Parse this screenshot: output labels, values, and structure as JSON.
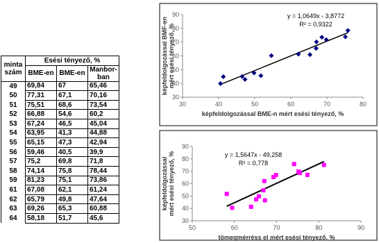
{
  "table": {
    "header": {
      "sample": "minta szám",
      "group": "Esési tényező, %",
      "columns": [
        "BME-en",
        "BME-en",
        "Manbor-ban"
      ]
    },
    "rows": [
      [
        "49",
        "69,84",
        "67",
        "65,46"
      ],
      [
        "50",
        "77,31",
        "67,1",
        "70,16"
      ],
      [
        "51",
        "75,51",
        "68,6",
        "73,54"
      ],
      [
        "52",
        "66,88",
        "54,6",
        "60,2"
      ],
      [
        "53",
        "67,24",
        "46,5",
        "45,04"
      ],
      [
        "54",
        "63,95",
        "41,3",
        "44,88"
      ],
      [
        "55",
        "65,15",
        "47,3",
        "42,94"
      ],
      [
        "56",
        "59,46",
        "40,5",
        "39,9"
      ],
      [
        "57",
        "75,2",
        "69,8",
        "71,8"
      ],
      [
        "58",
        "74,14",
        "75,8",
        "78,44"
      ],
      [
        "59",
        "81,23",
        "75,1",
        "73,86"
      ],
      [
        "61",
        "67,08",
        "62,1",
        "61,24"
      ],
      [
        "62",
        "65,79",
        "49,8",
        "47,64"
      ],
      [
        "63",
        "69,26",
        "65,3",
        "60,88"
      ],
      [
        "64",
        "58,18",
        "51,7",
        "45,6"
      ]
    ]
  },
  "chart_data": [
    {
      "type": "scatter",
      "xlabel": "képfeldolgozással BME-n mért esési tényező, %",
      "ylabel": [
        "képfeldolgozással BMF-en",
        "mért esési tényező, %"
      ],
      "annotations": [
        "y = 1,0649x - 3,8772",
        "R² = 0,9322"
      ],
      "x": [
        67,
        67.1,
        68.6,
        54.6,
        46.5,
        41.3,
        47.3,
        40.5,
        69.8,
        75.8,
        75.1,
        62.1,
        49.8,
        65.3,
        51.7
      ],
      "series": [
        {
          "color": "#000080",
          "marker": "diamond",
          "values": [
            65.46,
            70.16,
            73.54,
            60.2,
            45.04,
            44.88,
            42.94,
            39.9,
            71.8,
            78.44,
            73.86,
            61.24,
            47.64,
            60.88,
            45.6
          ]
        }
      ],
      "xlim": [
        30,
        80
      ],
      "xticks": [
        30,
        40,
        50,
        60,
        70,
        80
      ],
      "ylim": [
        30,
        90
      ],
      "yticks": [
        30,
        40,
        50,
        60,
        70,
        80,
        90
      ],
      "trendline": "linear"
    },
    {
      "type": "scatter",
      "xlabel": "tömegmérréss el mért esési tényező, %",
      "ylabel": [
        "képfeldolgozással",
        "mért esési tényező, %"
      ],
      "annotations": [
        "y = 1,5647x - 49,258",
        "R² = 0,778"
      ],
      "x": [
        69.84,
        77.31,
        75.51,
        66.88,
        67.24,
        63.95,
        65.15,
        59.46,
        75.2,
        74.14,
        81.23,
        67.08,
        65.79,
        69.26,
        58.18
      ],
      "series": [
        {
          "color": "#ff00ff",
          "marker": "square",
          "values": [
            67,
            67.1,
            68.6,
            54.6,
            46.5,
            41.3,
            47.3,
            40.5,
            69.8,
            75.8,
            75.1,
            62.1,
            49.8,
            65.3,
            51.7
          ]
        }
      ],
      "xlim": [
        50,
        90
      ],
      "xticks": [
        50,
        60,
        70,
        80,
        90
      ],
      "ylim": [
        30,
        90
      ],
      "yticks": [
        30,
        40,
        50,
        60,
        70,
        80,
        90
      ],
      "trendline": "linear"
    }
  ]
}
